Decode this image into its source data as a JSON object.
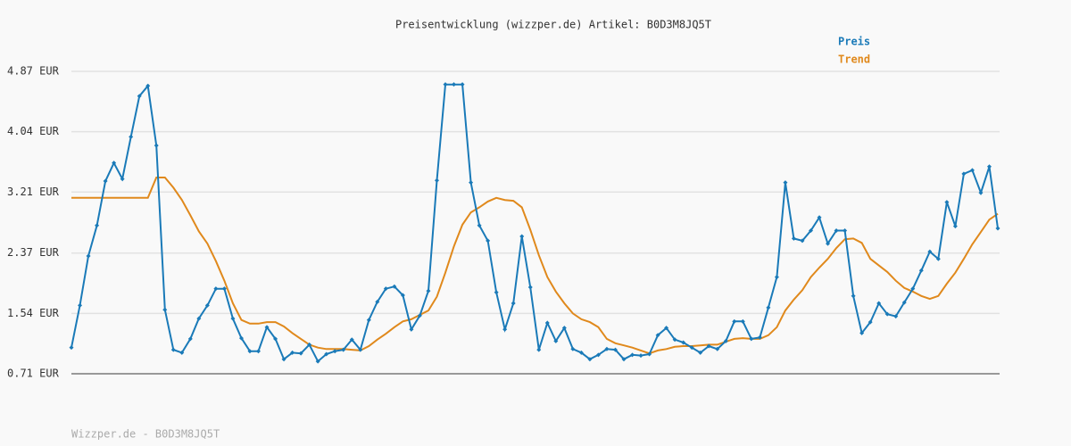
{
  "chart_data": {
    "type": "line",
    "title": "Preisentwicklung (wizzper.de) Artikel: B0D3M8JQ5T",
    "footer": "Wizzper.de - B0D3M8JQ5T",
    "ylim": [
      0.71,
      4.87
    ],
    "yticks": [
      {
        "value": 0.71,
        "label": "0.71 EUR"
      },
      {
        "value": 1.54,
        "label": "1.54 EUR"
      },
      {
        "value": 2.37,
        "label": "2.37 EUR"
      },
      {
        "value": 3.21,
        "label": "3.21 EUR"
      },
      {
        "value": 4.04,
        "label": "4.04 EUR"
      },
      {
        "value": 4.87,
        "label": "4.87 EUR"
      }
    ],
    "grid": true,
    "legend": "top-right",
    "series": [
      {
        "name": "Preis",
        "color": "#1a7ab8",
        "markers": true,
        "values": [
          1.07,
          1.65,
          2.33,
          2.75,
          3.36,
          3.61,
          3.39,
          3.97,
          4.53,
          4.67,
          3.85,
          1.59,
          1.04,
          1.0,
          1.19,
          1.47,
          1.65,
          1.88,
          1.88,
          1.47,
          1.2,
          1.02,
          1.02,
          1.35,
          1.19,
          0.91,
          1.0,
          0.99,
          1.11,
          0.88,
          0.98,
          1.02,
          1.04,
          1.18,
          1.04,
          1.45,
          1.7,
          1.88,
          1.91,
          1.79,
          1.32,
          1.51,
          1.85,
          3.37,
          4.69,
          4.69,
          4.69,
          3.34,
          2.75,
          2.54,
          1.83,
          1.32,
          1.68,
          2.6,
          1.9,
          1.04,
          1.41,
          1.16,
          1.34,
          1.05,
          1.0,
          0.91,
          0.97,
          1.05,
          1.04,
          0.91,
          0.97,
          0.96,
          0.98,
          1.24,
          1.34,
          1.18,
          1.14,
          1.07,
          1.0,
          1.09,
          1.05,
          1.16,
          1.43,
          1.43,
          1.19,
          1.21,
          1.62,
          2.04,
          3.34,
          2.57,
          2.54,
          2.68,
          2.86,
          2.5,
          2.68,
          2.68,
          1.78,
          1.27,
          1.42,
          1.68,
          1.53,
          1.5,
          1.69,
          1.88,
          2.13,
          2.39,
          2.29,
          3.07,
          2.74,
          3.46,
          3.51,
          3.2,
          3.56,
          2.71
        ]
      },
      {
        "name": "Trend",
        "color": "#e0891c",
        "markers": false,
        "values": [
          3.13,
          3.13,
          3.13,
          3.13,
          3.13,
          3.13,
          3.13,
          3.13,
          3.13,
          3.13,
          3.41,
          3.41,
          3.27,
          3.1,
          2.89,
          2.67,
          2.5,
          2.26,
          1.99,
          1.68,
          1.45,
          1.4,
          1.4,
          1.42,
          1.42,
          1.36,
          1.27,
          1.19,
          1.11,
          1.07,
          1.05,
          1.05,
          1.05,
          1.04,
          1.03,
          1.09,
          1.18,
          1.26,
          1.35,
          1.43,
          1.46,
          1.52,
          1.58,
          1.77,
          2.1,
          2.46,
          2.76,
          2.93,
          3.0,
          3.08,
          3.13,
          3.1,
          3.09,
          3.0,
          2.69,
          2.34,
          2.04,
          1.84,
          1.68,
          1.54,
          1.46,
          1.42,
          1.35,
          1.19,
          1.13,
          1.1,
          1.07,
          1.03,
          0.99,
          1.03,
          1.05,
          1.08,
          1.09,
          1.09,
          1.1,
          1.11,
          1.11,
          1.15,
          1.19,
          1.2,
          1.19,
          1.19,
          1.24,
          1.35,
          1.58,
          1.73,
          1.86,
          2.04,
          2.17,
          2.29,
          2.44,
          2.56,
          2.57,
          2.51,
          2.29,
          2.2,
          2.11,
          1.99,
          1.89,
          1.84,
          1.78,
          1.74,
          1.78,
          1.95,
          2.1,
          2.29,
          2.49,
          2.66,
          2.83,
          2.91
        ]
      }
    ]
  }
}
